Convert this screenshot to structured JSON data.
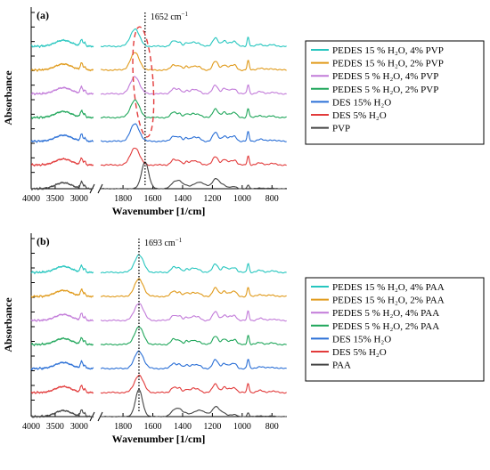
{
  "chart_data": [
    {
      "type": "line",
      "panel_label": "(a)",
      "ylabel": "Absorbance",
      "xlabel": "Wavenumber [1/cm]",
      "x_ticks": [
        "4000",
        "3500",
        "3000",
        "1800",
        "1600",
        "1400",
        "1200",
        "1000",
        "800"
      ],
      "x_segments": [
        [
          4000,
          2700
        ],
        [
          1950,
          700
        ]
      ],
      "annotation": {
        "text": "1652 cm",
        "superscript": "−1",
        "x": 1652
      },
      "highlight": {
        "shape": "dashed-ellipse",
        "center_x": 1652
      },
      "series": [
        {
          "name": "PEDES 15 % H₂O, 4% PVP",
          "color": "#26c6bf"
        },
        {
          "name": "PEDES 15 % H₂O, 2% PVP",
          "color": "#e09a1a"
        },
        {
          "name": "PEDES 5 % H₂O, 4% PVP",
          "color": "#c27bd9"
        },
        {
          "name": "PEDES 5 % H₂O, 2% PVP",
          "color": "#1fa65a"
        },
        {
          "name": "DES 15% H₂O",
          "color": "#2a6fd6"
        },
        {
          "name": "DES 5% H₂O",
          "color": "#e23b3b"
        },
        {
          "name": "PVP",
          "color": "#444444"
        }
      ]
    },
    {
      "type": "line",
      "panel_label": "(b)",
      "ylabel": "Absorbance",
      "xlabel": "Wavenumber [1/cm]",
      "x_ticks": [
        "4000",
        "3500",
        "3000",
        "1800",
        "1600",
        "1400",
        "1200",
        "1000",
        "800"
      ],
      "x_segments": [
        [
          4000,
          2700
        ],
        [
          1950,
          700
        ]
      ],
      "annotation": {
        "text": "1693 cm",
        "superscript": "−1",
        "x": 1693
      },
      "series": [
        {
          "name": "PEDES 15 % H₂O, 4% PAA",
          "color": "#26c6bf"
        },
        {
          "name": "PEDES 15 % H₂O, 2% PAA",
          "color": "#e09a1a"
        },
        {
          "name": "PEDES 5 % H₂O, 4% PAA",
          "color": "#c27bd9"
        },
        {
          "name": "PEDES 5 % H₂O, 2% PAA",
          "color": "#1fa65a"
        },
        {
          "name": "DES 15% H₂O",
          "color": "#2a6fd6"
        },
        {
          "name": "DES 5% H₂O",
          "color": "#e23b3b"
        },
        {
          "name": "PAA",
          "color": "#444444"
        }
      ]
    }
  ]
}
